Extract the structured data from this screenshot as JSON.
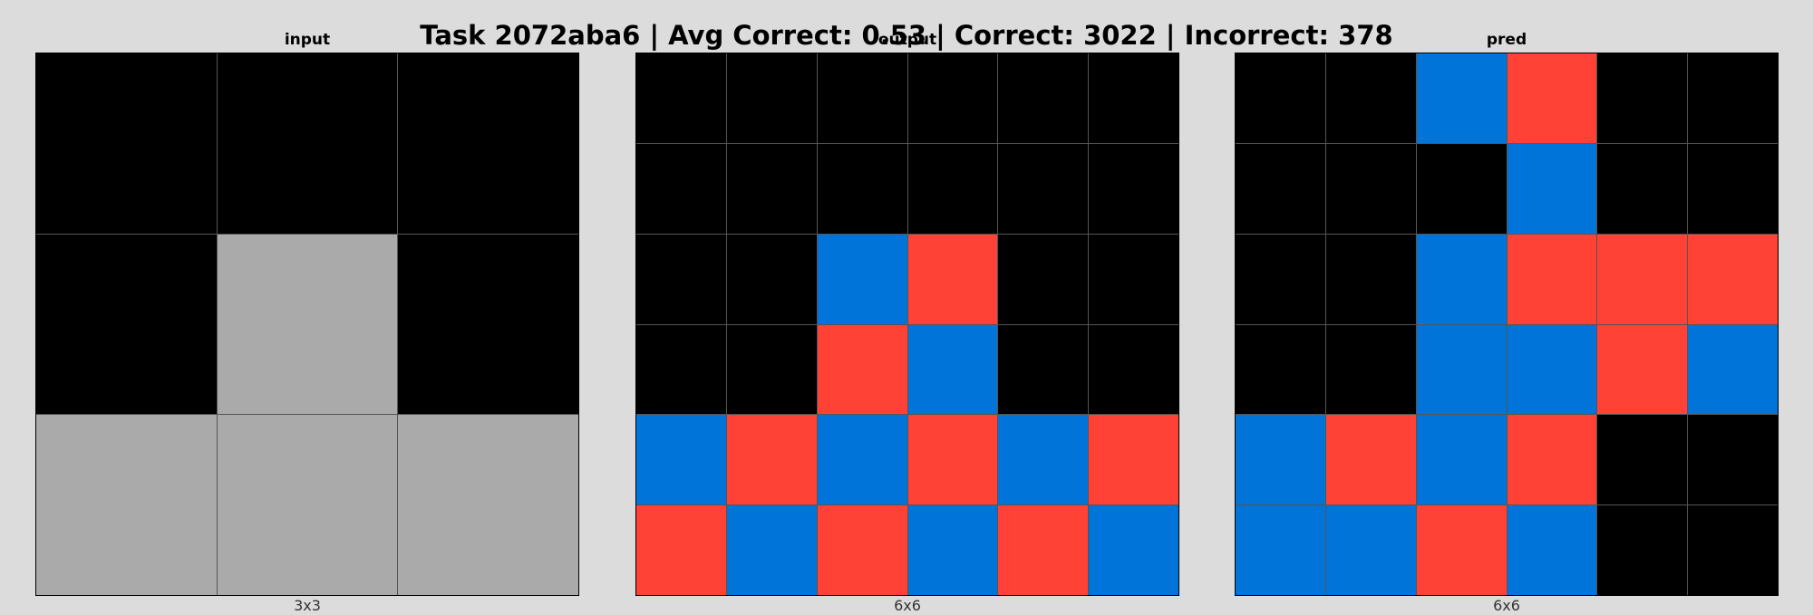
{
  "title": "Task 2072aba6 | Avg Correct: 0.53 | Correct: 3022 | Incorrect: 378",
  "colors": {
    "0": "#000000",
    "1": "#0074d9",
    "2": "#ff4136",
    "5": "#aaaaaa"
  },
  "panels": [
    {
      "title": "input",
      "caption": "3x3",
      "rows": 3,
      "cols": 3,
      "grid": [
        [
          0,
          0,
          0
        ],
        [
          0,
          5,
          0
        ],
        [
          5,
          5,
          5
        ]
      ]
    },
    {
      "title": "output",
      "caption": "6x6",
      "rows": 6,
      "cols": 6,
      "grid": [
        [
          0,
          0,
          0,
          0,
          0,
          0
        ],
        [
          0,
          0,
          0,
          0,
          0,
          0
        ],
        [
          0,
          0,
          1,
          2,
          0,
          0
        ],
        [
          0,
          0,
          2,
          1,
          0,
          0
        ],
        [
          1,
          2,
          1,
          2,
          1,
          2
        ],
        [
          2,
          1,
          2,
          1,
          2,
          1
        ]
      ]
    },
    {
      "title": "pred",
      "caption": "6x6",
      "rows": 6,
      "cols": 6,
      "grid": [
        [
          0,
          0,
          1,
          2,
          0,
          0
        ],
        [
          0,
          0,
          0,
          1,
          0,
          0
        ],
        [
          0,
          0,
          1,
          2,
          2,
          2
        ],
        [
          0,
          0,
          1,
          1,
          2,
          1
        ],
        [
          1,
          2,
          1,
          2,
          0,
          0
        ],
        [
          1,
          1,
          2,
          1,
          0,
          0
        ]
      ]
    }
  ]
}
